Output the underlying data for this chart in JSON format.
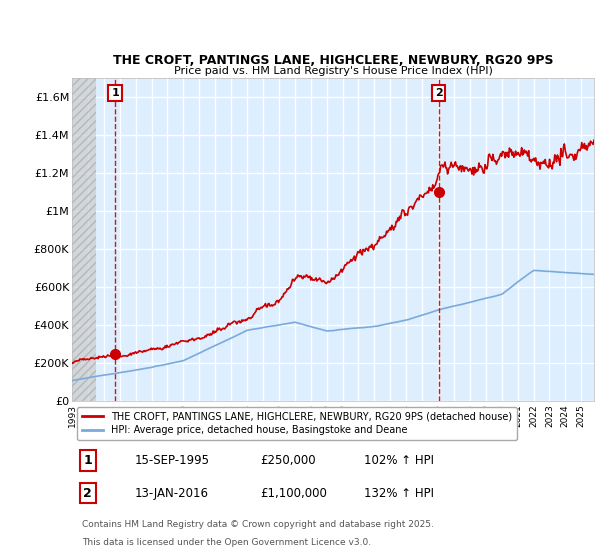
{
  "title": "THE CROFT, PANTINGS LANE, HIGHCLERE, NEWBURY, RG20 9PS",
  "subtitle": "Price paid vs. HM Land Registry's House Price Index (HPI)",
  "ylim": [
    0,
    1700000
  ],
  "yticks": [
    0,
    200000,
    400000,
    600000,
    800000,
    1000000,
    1200000,
    1400000,
    1600000
  ],
  "ytick_labels": [
    "£0",
    "£200K",
    "£400K",
    "£600K",
    "£800K",
    "£1M",
    "£1.2M",
    "£1.4M",
    "£1.6M"
  ],
  "xlim_start": 1993.0,
  "xlim_end": 2025.8,
  "chart_bg_color": "#ddeeff",
  "hatch_bg_color": "#c8c8c8",
  "grid_color": "#ffffff",
  "sale1_year": 1995.71,
  "sale1_price": 250000,
  "sale2_year": 2016.04,
  "sale2_price": 1100000,
  "red_color": "#cc0000",
  "blue_color": "#7aaadd",
  "legend_red": "THE CROFT, PANTINGS LANE, HIGHCLERE, NEWBURY, RG20 9PS (detached house)",
  "legend_blue": "HPI: Average price, detached house, Basingstoke and Deane",
  "footer1": "Contains HM Land Registry data © Crown copyright and database right 2025.",
  "footer2": "This data is licensed under the Open Government Licence v3.0.",
  "table_rows": [
    {
      "num": "1",
      "date": "15-SEP-1995",
      "price": "£250,000",
      "hpi": "102% ↑ HPI"
    },
    {
      "num": "2",
      "date": "13-JAN-2016",
      "price": "£1,100,000",
      "hpi": "132% ↑ HPI"
    }
  ]
}
